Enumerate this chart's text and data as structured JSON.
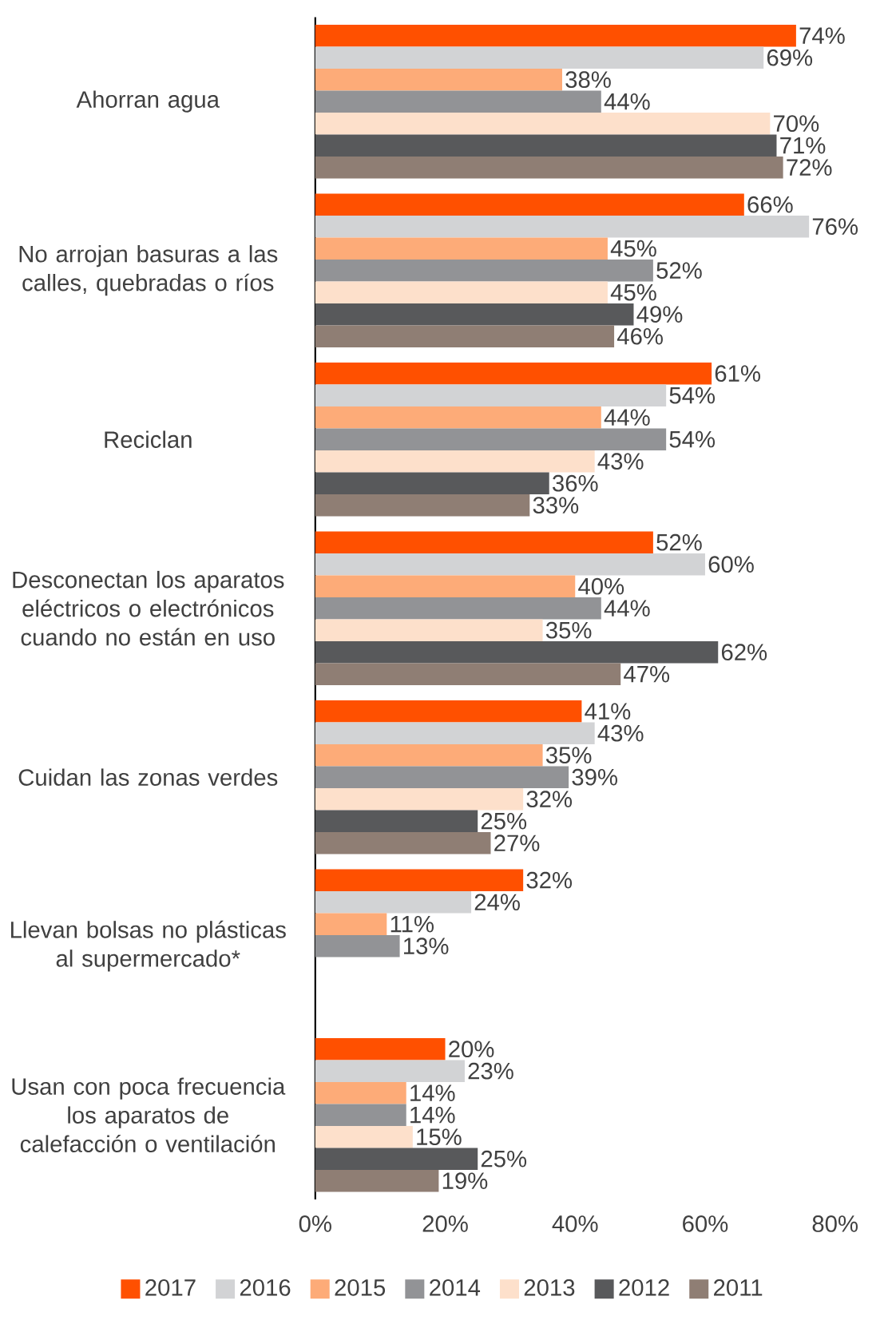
{
  "chart_data": {
    "type": "bar",
    "orientation": "horizontal",
    "categories": [
      "Ahorran agua",
      "No arrojan basuras a las calles, quebradas o ríos",
      "Reciclan",
      "Desconectan los aparatos eléctricos  o electrónicos cuando no están en uso",
      "Cuidan las zonas verdes",
      "Llevan bolsas no plásticas al supermercado*",
      "Usan con poca frecuencia los aparatos de calefacción o ventilación"
    ],
    "series": [
      {
        "name": "2017",
        "color": "#ff5000",
        "values": [
          74,
          66,
          61,
          52,
          41,
          32,
          20
        ],
        "value_labels": [
          "74%",
          "66%",
          "61%",
          "52%",
          "41%",
          "32%",
          "20%"
        ]
      },
      {
        "name": "2016",
        "color": "#d2d3d5",
        "values": [
          69,
          76,
          54,
          60,
          43,
          24,
          23
        ],
        "value_labels": [
          "69%",
          "76%",
          "54%",
          "60%",
          "43%",
          "24%",
          "23%"
        ]
      },
      {
        "name": "2015",
        "color": "#fdab78",
        "values": [
          38,
          45,
          44,
          40,
          35,
          11,
          14
        ],
        "value_labels": [
          "38%",
          "45%",
          "44%",
          "40%",
          "35%",
          "11%",
          "14%"
        ]
      },
      {
        "name": "2014",
        "color": "#929396",
        "values": [
          44,
          52,
          54,
          44,
          39,
          13,
          14
        ],
        "value_labels": [
          "44%",
          "52%",
          "54%",
          "44%",
          "39%",
          "13%",
          "14%"
        ]
      },
      {
        "name": "2013",
        "color": "#fde0cb",
        "values": [
          70,
          45,
          43,
          35,
          32,
          null,
          15
        ],
        "value_labels": [
          "70%",
          "45%",
          "43%",
          "35%",
          "32%",
          null,
          "15%"
        ]
      },
      {
        "name": "2012",
        "color": "#58595b",
        "values": [
          71,
          49,
          36,
          62,
          25,
          null,
          25
        ],
        "value_labels": [
          "71%",
          "49%",
          "36%",
          "62%",
          "25%",
          null,
          "25%"
        ]
      },
      {
        "name": "2011",
        "color": "#8f7e74",
        "values": [
          72,
          46,
          33,
          47,
          27,
          null,
          19
        ],
        "value_labels": [
          "72%",
          "46%",
          "33%",
          "47%",
          "27%",
          null,
          "19%"
        ]
      }
    ],
    "xlim": [
      0,
      80
    ],
    "xticks": [
      {
        "value": 0,
        "label": "0%"
      },
      {
        "value": 20,
        "label": "20%"
      },
      {
        "value": 40,
        "label": "40%"
      },
      {
        "value": 60,
        "label": "60%"
      },
      {
        "value": 80,
        "label": "80%"
      }
    ],
    "legend": "bottom"
  }
}
